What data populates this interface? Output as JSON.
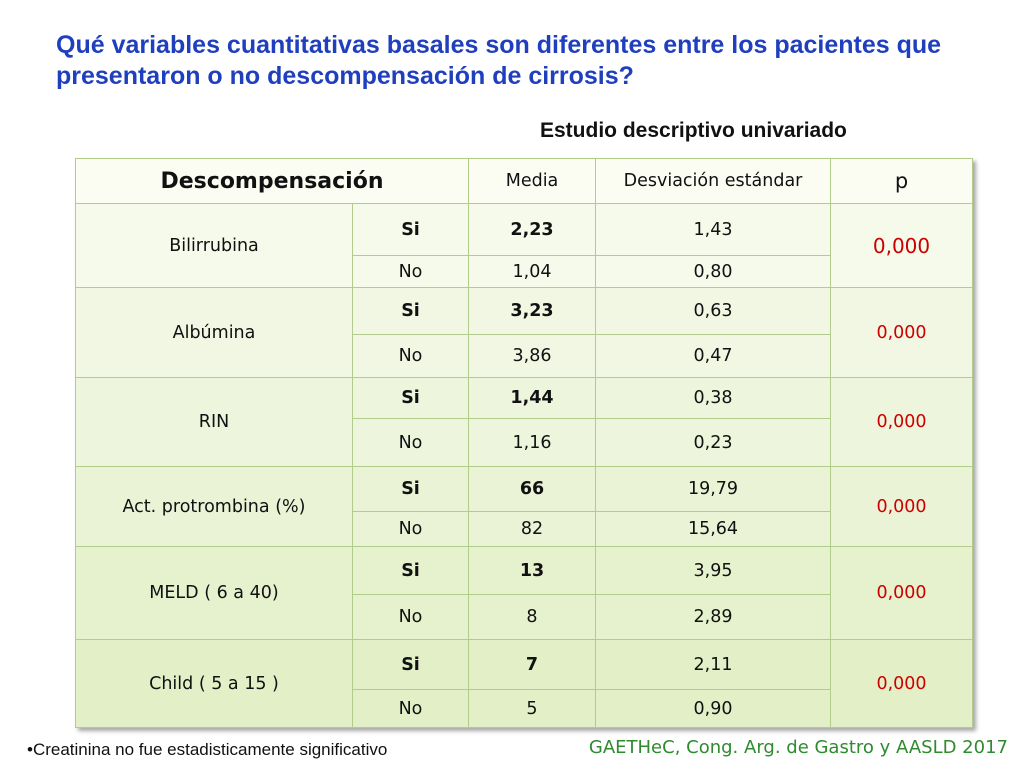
{
  "title": "Qué variables cuantitativas basales son diferentes entre los pacientes que presentaron o no descompensación de cirrosis?",
  "subtitle": "Estudio descriptivo univariado",
  "table": {
    "headers": {
      "group": "Descompensación",
      "mean": "Media",
      "sd": "Desviación estándar",
      "p": "p"
    },
    "rows": [
      {
        "variable": "Bilirrubina",
        "p": "0,000",
        "si": {
          "label": "Si",
          "mean": "2,23",
          "sd": "1,43"
        },
        "no": {
          "label": "No",
          "mean": "1,04",
          "sd": "0,80"
        }
      },
      {
        "variable": "Albúmina",
        "p": "0,000",
        "si": {
          "label": "Si",
          "mean": "3,23",
          "sd": "0,63"
        },
        "no": {
          "label": "No",
          "mean": "3,86",
          "sd": "0,47"
        }
      },
      {
        "variable": "RIN",
        "p": "0,000",
        "si": {
          "label": "Si",
          "mean": "1,44",
          "sd": "0,38"
        },
        "no": {
          "label": "No",
          "mean": "1,16",
          "sd": "0,23"
        }
      },
      {
        "variable": "Act.  protrombina (%)",
        "p": "0,000",
        "si": {
          "label": "Si",
          "mean": "66",
          "sd": "19,79"
        },
        "no": {
          "label": "No",
          "mean": "82",
          "sd": "15,64"
        }
      },
      {
        "variable": "MELD ( 6 a 40)",
        "p": "0,000",
        "si": {
          "label": "Si",
          "mean": "13",
          "sd": "3,95"
        },
        "no": {
          "label": "No",
          "mean": "8",
          "sd": "2,89"
        }
      },
      {
        "variable": "Child ( 5 a 15 )",
        "p": "0,000",
        "si": {
          "label": "Si",
          "mean": "7",
          "sd": "2,11"
        },
        "no": {
          "label": "No",
          "mean": "5",
          "sd": "0,90"
        }
      }
    ]
  },
  "footnote": "•Creatinina no fue estadisticamente significativo",
  "source": "GAETHeC, Cong. Arg. de Gastro y AASLD 2017",
  "colors": {
    "title": "#1f3fbf",
    "p_value": "#cc0000",
    "source": "#2e8b2e",
    "table_border": "#b2cc8c"
  }
}
